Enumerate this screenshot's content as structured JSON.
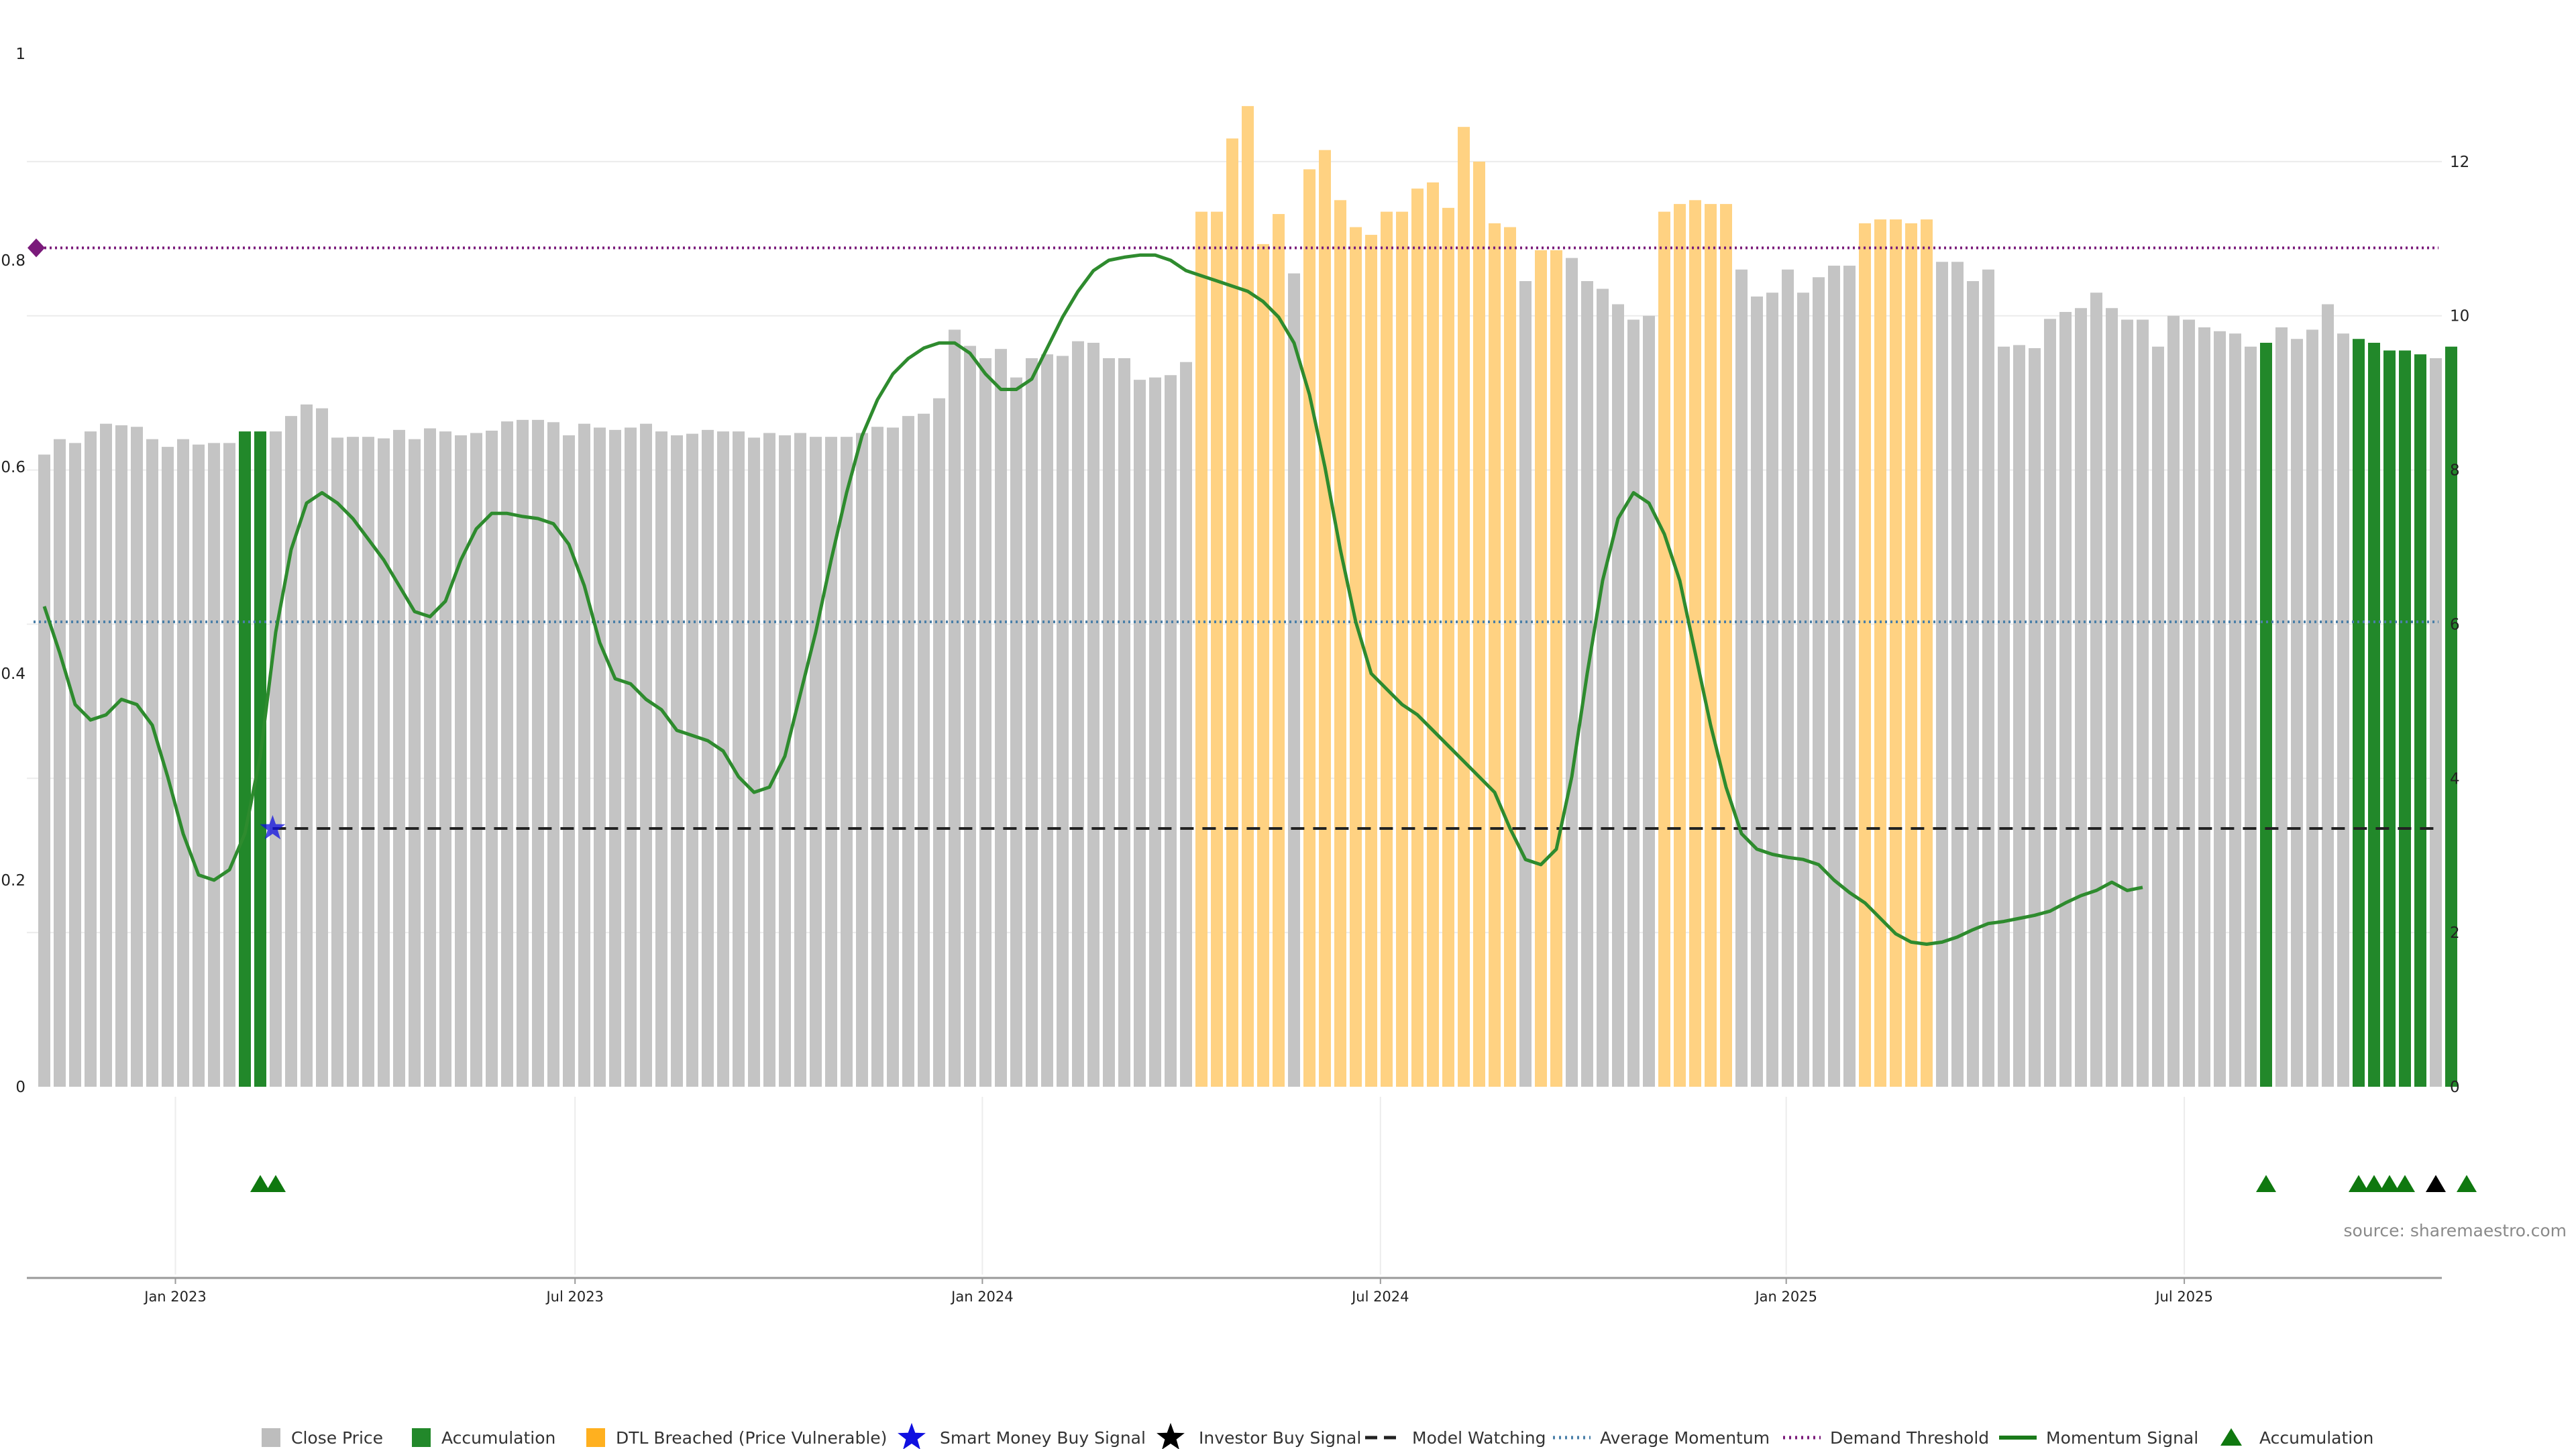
{
  "chart_data": {
    "type": "bar",
    "title": "",
    "xlabel": "",
    "ylabel_left": "",
    "ylabel_right": "",
    "y_left": {
      "ylim": [
        0,
        1
      ],
      "ticks": [
        0,
        0.2,
        0.4,
        0.6,
        0.8,
        1
      ],
      "tick_labels": [
        "0",
        "0.2",
        "0.4",
        "0.6",
        "0.8",
        "1"
      ]
    },
    "y_right": {
      "ylim": [
        0,
        13.4
      ],
      "ticks": [
        0,
        2,
        4,
        6,
        8,
        10,
        12
      ],
      "tick_labels": [
        "0",
        "2",
        "4",
        "6",
        "8",
        "10",
        "12"
      ]
    },
    "grid": true,
    "legend_placement": "bottom-center",
    "x_ticks": [
      {
        "label": "Jan 2023",
        "index": 8.5
      },
      {
        "label": "Jul 2023",
        "index": 34.4
      },
      {
        "label": "Jan 2024",
        "index": 60.8
      },
      {
        "label": "Jul 2024",
        "index": 86.6
      },
      {
        "label": "Jan 2025",
        "index": 112.9
      },
      {
        "label": "Jul 2025",
        "index": 138.7
      }
    ],
    "bar_values": [
      8.2,
      8.4,
      8.35,
      8.5,
      8.6,
      8.58,
      8.56,
      8.4,
      8.3,
      8.4,
      8.33,
      8.35,
      8.35,
      8.5,
      8.5,
      8.5,
      8.7,
      8.85,
      8.8,
      8.42,
      8.43,
      8.43,
      8.41,
      8.52,
      8.4,
      8.54,
      8.5,
      8.45,
      8.48,
      8.51,
      8.63,
      8.65,
      8.65,
      8.62,
      8.45,
      8.6,
      8.55,
      8.52,
      8.55,
      8.6,
      8.5,
      8.45,
      8.47,
      8.52,
      8.5,
      8.5,
      8.42,
      8.48,
      8.45,
      8.48,
      8.43,
      8.43,
      8.43,
      8.48,
      8.56,
      8.55,
      8.7,
      8.73,
      8.93,
      9.82,
      9.61,
      9.45,
      9.57,
      9.2,
      9.45,
      9.5,
      9.48,
      9.67,
      9.65,
      9.45,
      9.45,
      9.17,
      9.2,
      9.23,
      9.4,
      11.35,
      11.35,
      12.3,
      12.72,
      10.93,
      11.32,
      10.55,
      11.9,
      12.15,
      11.5,
      11.15,
      11.05,
      11.35,
      11.35,
      11.65,
      11.73,
      11.4,
      12.45,
      12.0,
      11.2,
      11.15,
      10.45,
      10.85,
      10.85,
      10.75,
      10.45,
      10.35,
      10.15,
      9.95,
      10.0,
      11.35,
      11.45,
      11.5,
      11.45,
      11.45,
      10.6,
      10.25,
      10.3,
      10.6,
      10.3,
      10.5,
      10.65,
      10.65,
      11.2,
      11.25,
      11.25,
      11.2,
      11.25,
      10.7,
      10.7,
      10.45,
      10.6,
      9.6,
      9.62,
      9.58,
      9.96,
      10.05,
      10.1,
      10.3,
      10.1,
      9.95,
      9.95,
      9.6,
      10.0,
      9.95,
      9.85,
      9.8,
      9.77,
      9.6,
      9.65,
      9.85,
      9.7,
      9.82,
      10.15,
      9.77,
      9.7,
      9.65,
      9.55,
      9.55,
      9.5,
      9.45,
      9.6
    ],
    "bar_categories_per_index": [
      "gray",
      "gray",
      "gray",
      "gray",
      "gray",
      "gray",
      "gray",
      "gray",
      "gray",
      "gray",
      "gray",
      "gray",
      "gray",
      "green",
      "green",
      "gray",
      "gray",
      "gray",
      "gray",
      "gray",
      "gray",
      "gray",
      "gray",
      "gray",
      "gray",
      "gray",
      "gray",
      "gray",
      "gray",
      "gray",
      "gray",
      "gray",
      "gray",
      "gray",
      "gray",
      "gray",
      "gray",
      "gray",
      "gray",
      "gray",
      "gray",
      "gray",
      "gray",
      "gray",
      "gray",
      "gray",
      "gray",
      "gray",
      "gray",
      "gray",
      "gray",
      "gray",
      "gray",
      "gray",
      "gray",
      "gray",
      "gray",
      "gray",
      "gray",
      "gray",
      "gray",
      "gray",
      "gray",
      "gray",
      "gray",
      "gray",
      "gray",
      "gray",
      "gray",
      "gray",
      "gray",
      "gray",
      "gray",
      "gray",
      "gray",
      "orange",
      "orange",
      "orange",
      "orange",
      "orange",
      "orange",
      "gray",
      "orange",
      "orange",
      "orange",
      "orange",
      "orange",
      "orange",
      "orange",
      "orange",
      "orange",
      "orange",
      "orange",
      "orange",
      "orange",
      "orange",
      "gray",
      "orange",
      "orange",
      "gray",
      "gray",
      "gray",
      "gray",
      "gray",
      "gray",
      "orange",
      "orange",
      "orange",
      "orange",
      "orange",
      "gray",
      "gray",
      "gray",
      "gray",
      "gray",
      "gray",
      "gray",
      "gray",
      "orange",
      "orange",
      "orange",
      "orange",
      "orange",
      "gray",
      "gray",
      "gray",
      "gray",
      "gray",
      "gray",
      "gray",
      "gray",
      "gray",
      "gray",
      "gray",
      "gray",
      "gray",
      "gray",
      "gray",
      "gray",
      "gray",
      "gray",
      "gray",
      "gray",
      "gray",
      "green",
      "gray",
      "gray",
      "gray",
      "gray",
      "gray",
      "green",
      "green",
      "green",
      "green",
      "green",
      "gray",
      "green"
    ],
    "momentum_signal": [
      0.465,
      0.42,
      0.37,
      0.355,
      0.36,
      0.375,
      0.37,
      0.35,
      0.3,
      0.245,
      0.205,
      0.2,
      0.21,
      0.245,
      0.32,
      0.44,
      0.52,
      0.565,
      0.575,
      0.565,
      0.55,
      0.53,
      0.51,
      0.485,
      0.46,
      0.455,
      0.47,
      0.51,
      0.54,
      0.555,
      0.555,
      0.552,
      0.55,
      0.545,
      0.525,
      0.485,
      0.43,
      0.395,
      0.39,
      0.375,
      0.365,
      0.345,
      0.34,
      0.335,
      0.325,
      0.3,
      0.285,
      0.29,
      0.32,
      0.38,
      0.44,
      0.51,
      0.575,
      0.63,
      0.665,
      0.69,
      0.705,
      0.715,
      0.72,
      0.72,
      0.71,
      0.69,
      0.675,
      0.675,
      0.685,
      0.715,
      0.745,
      0.77,
      0.79,
      0.8,
      0.803,
      0.805,
      0.805,
      0.8,
      0.79,
      0.785,
      0.78,
      0.775,
      0.77,
      0.76,
      0.745,
      0.72,
      0.67,
      0.6,
      0.52,
      0.45,
      0.4,
      0.385,
      0.37,
      0.36,
      0.345,
      0.33,
      0.315,
      0.3,
      0.285,
      0.25,
      0.22,
      0.215,
      0.23,
      0.3,
      0.4,
      0.49,
      0.55,
      0.575,
      0.565,
      0.535,
      0.49,
      0.42,
      0.35,
      0.29,
      0.245,
      0.23,
      0.225,
      0.222,
      0.22,
      0.215,
      0.2,
      0.188,
      0.178,
      0.163,
      0.148,
      0.14,
      0.138,
      0.14,
      0.145,
      0.152,
      0.158,
      0.16,
      0.163,
      0.166,
      0.17,
      0.178,
      0.185,
      0.19,
      0.198,
      0.19,
      0.193
    ],
    "average_momentum": 0.45,
    "demand_threshold": 0.812,
    "model_watching_value": 0.25,
    "model_watching_start_index": 14.8,
    "smart_money_buy_signal": [
      {
        "index": 14.8,
        "value": 0.25
      }
    ],
    "demand_threshold_marker_index": 0,
    "accumulation_markers": [
      14,
      15,
      144,
      150,
      151,
      152,
      153,
      157
    ],
    "investor_buy_markers": [
      155
    ],
    "legend": [
      {
        "label": "Close Price",
        "kind": "square",
        "color": "#bdbdbd"
      },
      {
        "label": "Accumulation",
        "kind": "square",
        "color": "#22882a"
      },
      {
        "label": "DTL Breached (Price Vulnerable)",
        "kind": "square",
        "color": "#ffb01f"
      },
      {
        "label": "Smart Money Buy Signal",
        "kind": "star",
        "color": "#1010e0"
      },
      {
        "label": "Investor Buy Signal",
        "kind": "star",
        "color": "#000000"
      },
      {
        "label": "Model Watching",
        "kind": "dash",
        "color": "#222222"
      },
      {
        "label": "Average Momentum",
        "kind": "dot",
        "color": "#4a7fa8"
      },
      {
        "label": "Demand Threshold",
        "kind": "dot",
        "color": "#7a1a7a"
      },
      {
        "label": "Momentum Signal",
        "kind": "line",
        "color": "#1a7a1a"
      },
      {
        "label": "Accumulation",
        "kind": "triangle",
        "color": "#0f780f"
      }
    ],
    "colors": {
      "gray": "#c4c4c4",
      "green": "#22882a",
      "orange": "#ffd282",
      "momentum": "#2e8b2e",
      "average_momentum": "#4a7fa8",
      "demand_threshold": "#7a1a7a",
      "model_watching": "#222222",
      "smart_money": "#1010e0",
      "investor": "#000000",
      "triangle": "#0f780f"
    }
  },
  "source_text": "source: sharemaestro.com"
}
